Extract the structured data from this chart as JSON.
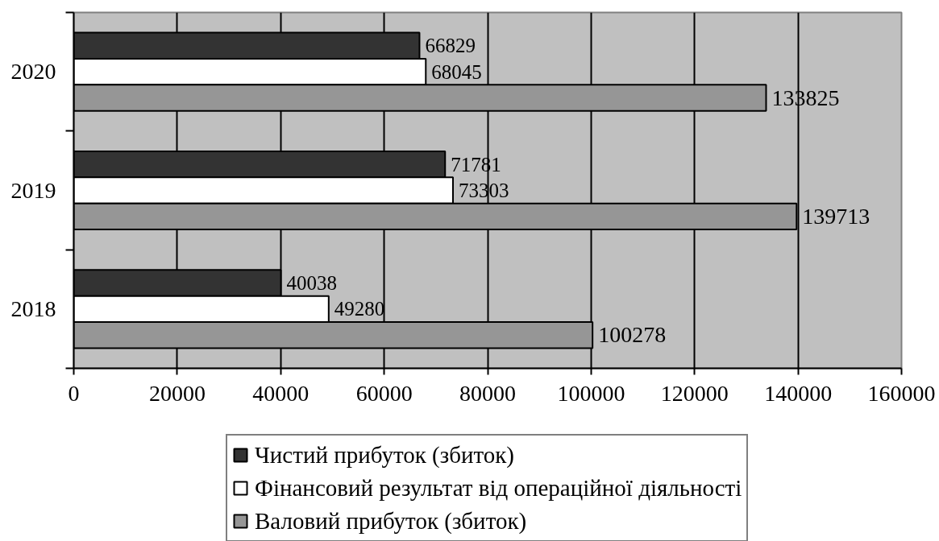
{
  "chart_data": {
    "type": "bar",
    "orientation": "horizontal",
    "categories": [
      "2020",
      "2019",
      "2018"
    ],
    "series": [
      {
        "name": "Чистий прибуток (збиток)",
        "color": "#333333",
        "values": [
          66829,
          71781,
          40038
        ]
      },
      {
        "name": "Фінансовий результат від операційної діяльності",
        "color": "#ffffff",
        "values": [
          68045,
          73303,
          49280
        ]
      },
      {
        "name": "Валовий прибуток (збиток)",
        "color": "#969696",
        "values": [
          133825,
          139713,
          100278
        ]
      }
    ],
    "xlim": [
      0,
      160000
    ],
    "xticks": [
      0,
      20000,
      40000,
      60000,
      80000,
      100000,
      120000,
      140000,
      160000
    ],
    "grid": "x",
    "legend": "bottom",
    "data_labels": true
  }
}
